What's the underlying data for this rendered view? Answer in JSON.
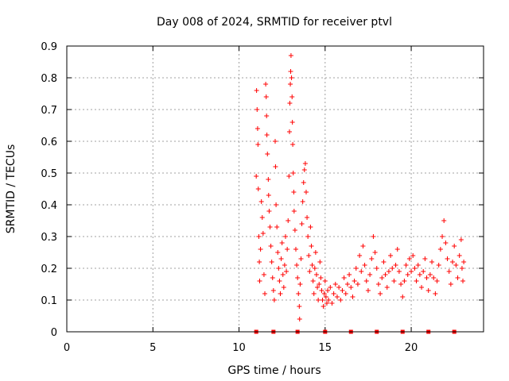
{
  "chart_data": {
    "type": "scatter",
    "title": "Day 008 of 2024, SRMTID for receiver ptvl",
    "xlabel": "GPS time / hours",
    "ylabel": "SRMTID / TECUs",
    "xlim": [
      0,
      24.2
    ],
    "ylim": [
      0,
      0.9
    ],
    "xticks": [
      0,
      5,
      10,
      15,
      20
    ],
    "yticks": [
      0,
      0.1,
      0.2,
      0.3,
      0.4,
      0.5,
      0.6,
      0.7,
      0.8,
      0.9
    ],
    "grid": true,
    "marker": "+",
    "series_color": "#ff0000",
    "baseline_markers_x": [
      11.0,
      12.0,
      13.4,
      15.0,
      16.5,
      18.0,
      19.5,
      21.0,
      22.5
    ],
    "series": [
      {
        "name": "SRMTID",
        "points": [
          [
            11.0,
            0.49
          ],
          [
            11.02,
            0.76
          ],
          [
            11.05,
            0.7
          ],
          [
            11.08,
            0.64
          ],
          [
            11.1,
            0.59
          ],
          [
            11.12,
            0.45
          ],
          [
            11.15,
            0.3
          ],
          [
            11.18,
            0.22
          ],
          [
            11.2,
            0.16
          ],
          [
            11.25,
            0.26
          ],
          [
            11.3,
            0.41
          ],
          [
            11.35,
            0.36
          ],
          [
            11.4,
            0.31
          ],
          [
            11.45,
            0.18
          ],
          [
            11.5,
            0.12
          ],
          [
            11.55,
            0.78
          ],
          [
            11.58,
            0.74
          ],
          [
            11.6,
            0.68
          ],
          [
            11.62,
            0.62
          ],
          [
            11.65,
            0.56
          ],
          [
            11.7,
            0.48
          ],
          [
            11.72,
            0.43
          ],
          [
            11.75,
            0.38
          ],
          [
            11.8,
            0.33
          ],
          [
            11.85,
            0.27
          ],
          [
            11.9,
            0.22
          ],
          [
            11.95,
            0.17
          ],
          [
            12.0,
            0.13
          ],
          [
            12.05,
            0.1
          ],
          [
            12.1,
            0.6
          ],
          [
            12.12,
            0.52
          ],
          [
            12.15,
            0.4
          ],
          [
            12.2,
            0.33
          ],
          [
            12.25,
            0.25
          ],
          [
            12.3,
            0.2
          ],
          [
            12.35,
            0.16
          ],
          [
            12.4,
            0.12
          ],
          [
            12.45,
            0.23
          ],
          [
            12.5,
            0.28
          ],
          [
            12.55,
            0.18
          ],
          [
            12.6,
            0.14
          ],
          [
            12.65,
            0.21
          ],
          [
            12.7,
            0.3
          ],
          [
            12.75,
            0.19
          ],
          [
            12.8,
            0.26
          ],
          [
            12.85,
            0.35
          ],
          [
            12.9,
            0.49
          ],
          [
            12.93,
            0.63
          ],
          [
            12.95,
            0.72
          ],
          [
            12.98,
            0.78
          ],
          [
            13.0,
            0.82
          ],
          [
            13.02,
            0.87
          ],
          [
            13.05,
            0.8
          ],
          [
            13.08,
            0.74
          ],
          [
            13.1,
            0.66
          ],
          [
            13.12,
            0.59
          ],
          [
            13.15,
            0.5
          ],
          [
            13.18,
            0.44
          ],
          [
            13.2,
            0.38
          ],
          [
            13.25,
            0.32
          ],
          [
            13.3,
            0.26
          ],
          [
            13.35,
            0.21
          ],
          [
            13.4,
            0.17
          ],
          [
            13.45,
            0.12
          ],
          [
            13.5,
            0.08
          ],
          [
            13.52,
            0.04
          ],
          [
            13.55,
            0.15
          ],
          [
            13.6,
            0.23
          ],
          [
            13.65,
            0.34
          ],
          [
            13.7,
            0.41
          ],
          [
            13.75,
            0.47
          ],
          [
            13.8,
            0.51
          ],
          [
            13.85,
            0.53
          ],
          [
            13.9,
            0.44
          ],
          [
            13.95,
            0.36
          ],
          [
            14.0,
            0.3
          ],
          [
            14.05,
            0.24
          ],
          [
            14.1,
            0.19
          ],
          [
            14.15,
            0.33
          ],
          [
            14.2,
            0.27
          ],
          [
            14.25,
            0.21
          ],
          [
            14.3,
            0.16
          ],
          [
            14.35,
            0.12
          ],
          [
            14.4,
            0.2
          ],
          [
            14.45,
            0.25
          ],
          [
            14.5,
            0.18
          ],
          [
            14.55,
            0.14
          ],
          [
            14.6,
            0.1
          ],
          [
            14.65,
            0.15
          ],
          [
            14.7,
            0.22
          ],
          [
            14.75,
            0.17
          ],
          [
            14.8,
            0.13
          ],
          [
            14.85,
            0.1
          ],
          [
            14.9,
            0.08
          ],
          [
            14.95,
            0.12
          ],
          [
            15.0,
            0.16
          ],
          [
            15.05,
            0.11
          ],
          [
            15.1,
            0.09
          ],
          [
            15.15,
            0.13
          ],
          [
            15.2,
            0.1
          ],
          [
            15.3,
            0.14
          ],
          [
            15.4,
            0.09
          ],
          [
            15.5,
            0.12
          ],
          [
            15.6,
            0.15
          ],
          [
            15.7,
            0.11
          ],
          [
            15.8,
            0.14
          ],
          [
            15.9,
            0.1
          ],
          [
            16.0,
            0.13
          ],
          [
            16.1,
            0.17
          ],
          [
            16.2,
            0.12
          ],
          [
            16.3,
            0.15
          ],
          [
            16.4,
            0.18
          ],
          [
            16.5,
            0.14
          ],
          [
            16.6,
            0.11
          ],
          [
            16.7,
            0.16
          ],
          [
            16.8,
            0.2
          ],
          [
            16.9,
            0.15
          ],
          [
            17.0,
            0.24
          ],
          [
            17.1,
            0.19
          ],
          [
            17.2,
            0.27
          ],
          [
            17.3,
            0.21
          ],
          [
            17.4,
            0.16
          ],
          [
            17.5,
            0.13
          ],
          [
            17.6,
            0.18
          ],
          [
            17.7,
            0.23
          ],
          [
            17.8,
            0.3
          ],
          [
            17.9,
            0.25
          ],
          [
            18.0,
            0.2
          ],
          [
            18.1,
            0.15
          ],
          [
            18.2,
            0.12
          ],
          [
            18.3,
            0.17
          ],
          [
            18.4,
            0.22
          ],
          [
            18.5,
            0.18
          ],
          [
            18.6,
            0.14
          ],
          [
            18.7,
            0.19
          ],
          [
            18.8,
            0.24
          ],
          [
            18.9,
            0.2
          ],
          [
            19.0,
            0.16
          ],
          [
            19.1,
            0.21
          ],
          [
            19.2,
            0.26
          ],
          [
            19.3,
            0.19
          ],
          [
            19.4,
            0.15
          ],
          [
            19.5,
            0.11
          ],
          [
            19.6,
            0.16
          ],
          [
            19.7,
            0.21
          ],
          [
            19.8,
            0.18
          ],
          [
            19.9,
            0.23
          ],
          [
            20.0,
            0.19
          ],
          [
            20.1,
            0.24
          ],
          [
            20.2,
            0.2
          ],
          [
            20.3,
            0.16
          ],
          [
            20.4,
            0.21
          ],
          [
            20.5,
            0.18
          ],
          [
            20.6,
            0.14
          ],
          [
            20.7,
            0.19
          ],
          [
            20.8,
            0.23
          ],
          [
            20.9,
            0.17
          ],
          [
            21.0,
            0.13
          ],
          [
            21.1,
            0.18
          ],
          [
            21.2,
            0.22
          ],
          [
            21.3,
            0.17
          ],
          [
            21.4,
            0.12
          ],
          [
            21.5,
            0.16
          ],
          [
            21.6,
            0.21
          ],
          [
            21.7,
            0.26
          ],
          [
            21.8,
            0.3
          ],
          [
            21.9,
            0.35
          ],
          [
            22.0,
            0.28
          ],
          [
            22.1,
            0.23
          ],
          [
            22.2,
            0.19
          ],
          [
            22.3,
            0.15
          ],
          [
            22.4,
            0.22
          ],
          [
            22.5,
            0.27
          ],
          [
            22.6,
            0.21
          ],
          [
            22.7,
            0.17
          ],
          [
            22.8,
            0.24
          ],
          [
            22.9,
            0.29
          ],
          [
            22.95,
            0.2
          ],
          [
            23.0,
            0.16
          ],
          [
            23.05,
            0.22
          ]
        ]
      }
    ]
  }
}
